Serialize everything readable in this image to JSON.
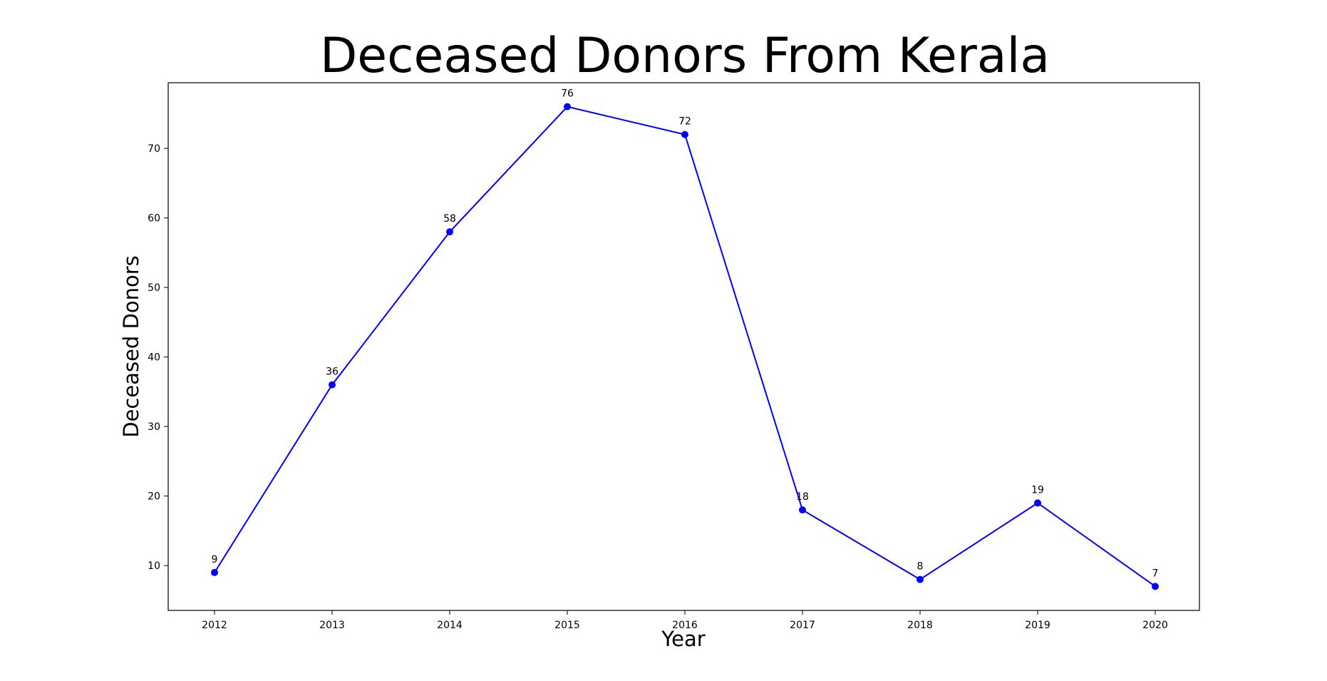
{
  "chart_data": {
    "type": "line",
    "title": "Deceased Donors From Kerala",
    "xlabel": "Year",
    "ylabel": "Deceased Donors",
    "x": [
      "2012",
      "2013",
      "2014",
      "2015",
      "2016",
      "2017",
      "2018",
      "2019",
      "2020"
    ],
    "series": [
      {
        "values": [
          9,
          36,
          58,
          76,
          72,
          18,
          8,
          19,
          7
        ],
        "color": "#0000ff",
        "marker": "circle"
      }
    ],
    "y_ticks": [
      10,
      20,
      30,
      40,
      50,
      60,
      70
    ],
    "ylim": [
      3.55,
      79.45
    ],
    "data_labels": [
      "9",
      "36",
      "58",
      "76",
      "72",
      "18",
      "8",
      "19",
      "7"
    ],
    "grid": false,
    "legend": "none"
  }
}
